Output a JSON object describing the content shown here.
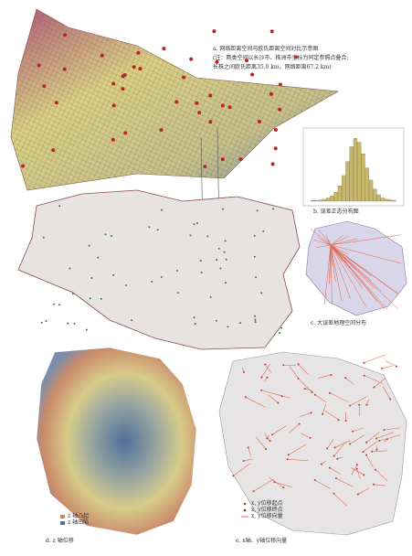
{
  "panel_a": {
    "title": "a. 网络距离空间与欧氏距离空间对比示意图",
    "note_1": "(注：两类空间以长沙市、株洲市坐标为同定参照点叠合;",
    "note_2": "长株之间欧氏距离35.0 km，网络距离67.2 km)"
  },
  "panel_b": {
    "caption": "b. 误差正态分布图",
    "counts": [
      1,
      1,
      2,
      3,
      5,
      8,
      14,
      24,
      40,
      62,
      85,
      98,
      92,
      74,
      52,
      33,
      19,
      10,
      5,
      3,
      2,
      1
    ],
    "ylim": [
      0,
      100
    ]
  },
  "panel_c": {
    "caption": "c. 大误差地理空间分布"
  },
  "panel_d": {
    "caption": "d. z 轴位移",
    "legend": [
      "z 轴凸起",
      "z 轴凹陷"
    ]
  },
  "panel_e": {
    "caption": "e. x轴、y轴位移向量",
    "legend": [
      "x, y位移起点",
      "x, y位移终点",
      "x, y位移向量"
    ]
  }
}
